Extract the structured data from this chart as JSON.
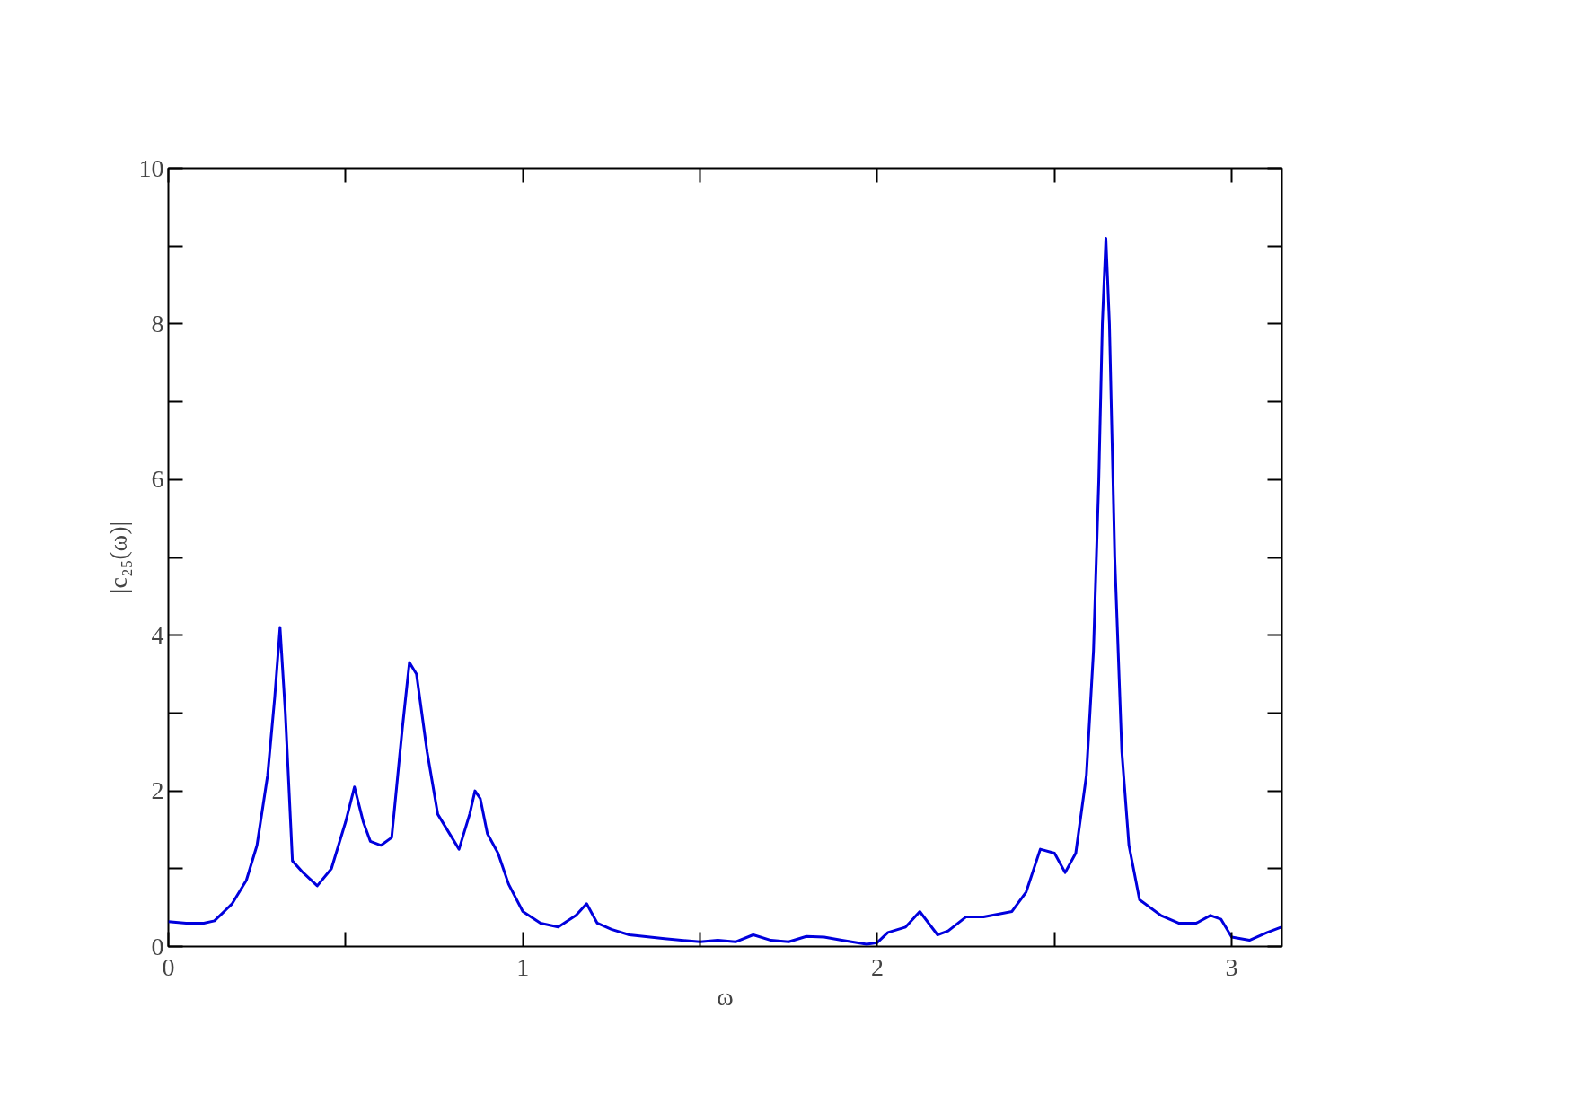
{
  "chart_data": {
    "type": "line",
    "xlabel": "ω",
    "ylabel": "|c₂₅(ω)|",
    "xlim": [
      0,
      3.1416
    ],
    "ylim": [
      0,
      10
    ],
    "xticks": [
      0,
      {
        "value": 0.5,
        "label": null
      },
      1,
      {
        "value": 1.5,
        "label": null
      },
      2,
      {
        "value": 2.5,
        "label": null
      },
      3
    ],
    "yticks": [
      0,
      {
        "value": 1,
        "label": null
      },
      2,
      {
        "value": 3,
        "label": null
      },
      4,
      {
        "value": 5,
        "label": null
      },
      6,
      {
        "value": 7,
        "label": null
      },
      8,
      {
        "value": 9,
        "label": null
      },
      10
    ],
    "grid": false,
    "marker": "none",
    "line_style": "solid",
    "series": [
      {
        "color": "#0000dd",
        "x": [
          0,
          0.05,
          0.1,
          0.13,
          0.18,
          0.22,
          0.25,
          0.28,
          0.3,
          0.315,
          0.33,
          0.35,
          0.38,
          0.42,
          0.46,
          0.5,
          0.525,
          0.55,
          0.57,
          0.6,
          0.63,
          0.66,
          0.68,
          0.7,
          0.73,
          0.76,
          0.8,
          0.82,
          0.85,
          0.865,
          0.88,
          0.9,
          0.93,
          0.96,
          1.0,
          1.05,
          1.1,
          1.15,
          1.18,
          1.21,
          1.25,
          1.3,
          1.4,
          1.5,
          1.55,
          1.6,
          1.65,
          1.7,
          1.75,
          1.8,
          1.85,
          1.9,
          1.97,
          2.0,
          2.03,
          2.08,
          2.12,
          2.17,
          2.2,
          2.25,
          2.3,
          2.38,
          2.42,
          2.46,
          2.5,
          2.53,
          2.56,
          2.59,
          2.61,
          2.625,
          2.635,
          2.645,
          2.655,
          2.67,
          2.69,
          2.71,
          2.74,
          2.8,
          2.85,
          2.9,
          2.94,
          2.97,
          3.0,
          3.05,
          3.1,
          3.14
        ],
        "values": [
          0.32,
          0.3,
          0.3,
          0.33,
          0.55,
          0.85,
          1.3,
          2.2,
          3.2,
          4.1,
          3.0,
          1.1,
          0.95,
          0.78,
          1.0,
          1.6,
          2.05,
          1.6,
          1.35,
          1.3,
          1.4,
          2.8,
          3.65,
          3.5,
          2.5,
          1.7,
          1.4,
          1.25,
          1.7,
          2.0,
          1.9,
          1.45,
          1.2,
          0.8,
          0.45,
          0.3,
          0.25,
          0.4,
          0.55,
          0.3,
          0.22,
          0.15,
          0.1,
          0.06,
          0.08,
          0.06,
          0.15,
          0.08,
          0.06,
          0.13,
          0.12,
          0.08,
          0.03,
          0.05,
          0.18,
          0.25,
          0.45,
          0.15,
          0.2,
          0.38,
          0.38,
          0.45,
          0.7,
          1.25,
          1.2,
          0.95,
          1.2,
          2.2,
          3.8,
          6.0,
          8.0,
          9.1,
          8.0,
          5.0,
          2.5,
          1.3,
          0.6,
          0.4,
          0.3,
          0.3,
          0.4,
          0.35,
          0.12,
          0.08,
          0.18,
          0.25
        ]
      }
    ]
  }
}
